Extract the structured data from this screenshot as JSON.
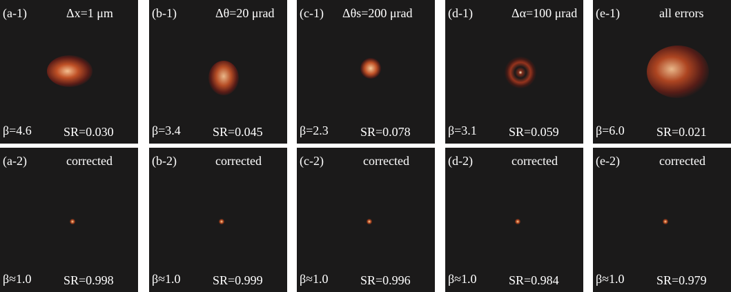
{
  "panels": [
    [
      {
        "label": "(a-1)",
        "condition": "Δx=1 μm",
        "beta": "β=4.6",
        "sr": "SR=0.030"
      },
      {
        "label": "(b-1)",
        "condition": "Δθ=20 μrad",
        "beta": "β=3.4",
        "sr": "SR=0.045"
      },
      {
        "label": "(c-1)",
        "condition": "Δθs=200 μrad",
        "beta": "β=2.3",
        "sr": "SR=0.078"
      },
      {
        "label": "(d-1)",
        "condition": "Δα=100 μrad",
        "beta": "β=3.1",
        "sr": "SR=0.059"
      },
      {
        "label": "(e-1)",
        "condition": "all errors",
        "beta": "β=6.0",
        "sr": "SR=0.021"
      }
    ],
    [
      {
        "label": "(a-2)",
        "condition": "corrected",
        "beta": "β≈1.0",
        "sr": "SR=0.998"
      },
      {
        "label": "(b-2)",
        "condition": "corrected",
        "beta": "β≈1.0",
        "sr": "SR=0.999"
      },
      {
        "label": "(c-2)",
        "condition": "corrected",
        "beta": "β≈1.0",
        "sr": "SR=0.996"
      },
      {
        "label": "(d-2)",
        "condition": "corrected",
        "beta": "β≈1.0",
        "sr": "SR=0.984"
      },
      {
        "label": "(e-2)",
        "condition": "corrected",
        "beta": "β≈1.0",
        "sr": "SR=0.979"
      }
    ]
  ]
}
